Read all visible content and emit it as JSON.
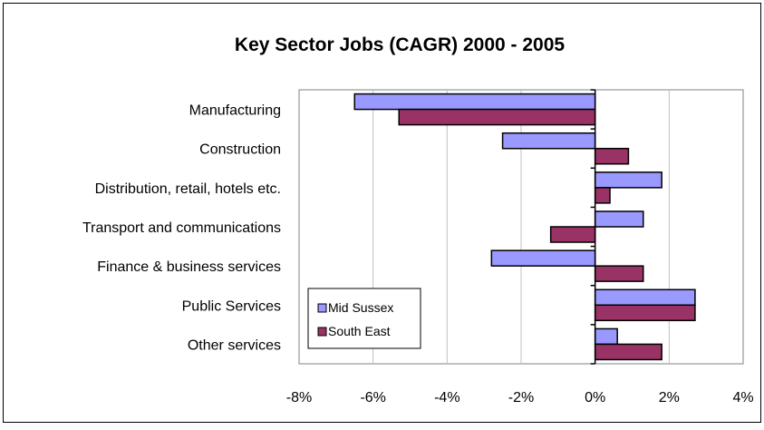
{
  "chart_data": {
    "type": "bar",
    "orientation": "horizontal",
    "title": "Key Sector Jobs (CAGR) 2000 - 2005",
    "xlabel": "",
    "ylabel": "",
    "categories": [
      "Manufacturing",
      "Construction",
      "Distribution, retail, hotels etc.",
      "Transport and communications",
      "Finance & business services",
      "Public Services",
      "Other services"
    ],
    "series": [
      {
        "name": "Mid Sussex",
        "color": "#9999ff",
        "values": [
          -6.5,
          -2.5,
          1.8,
          1.3,
          -2.8,
          2.7,
          0.6
        ]
      },
      {
        "name": "South East",
        "color": "#993366",
        "values": [
          -5.3,
          0.9,
          0.4,
          -1.2,
          1.3,
          2.7,
          1.8
        ]
      }
    ],
    "xlim": [
      -8,
      4
    ],
    "xticks": [
      -8,
      -6,
      -4,
      -2,
      0,
      2,
      4
    ],
    "xtick_labels": [
      "-8%",
      "-6%",
      "-4%",
      "-2%",
      "0%",
      "2%",
      "4%"
    ],
    "grid": true,
    "legend": "bottom-left"
  }
}
